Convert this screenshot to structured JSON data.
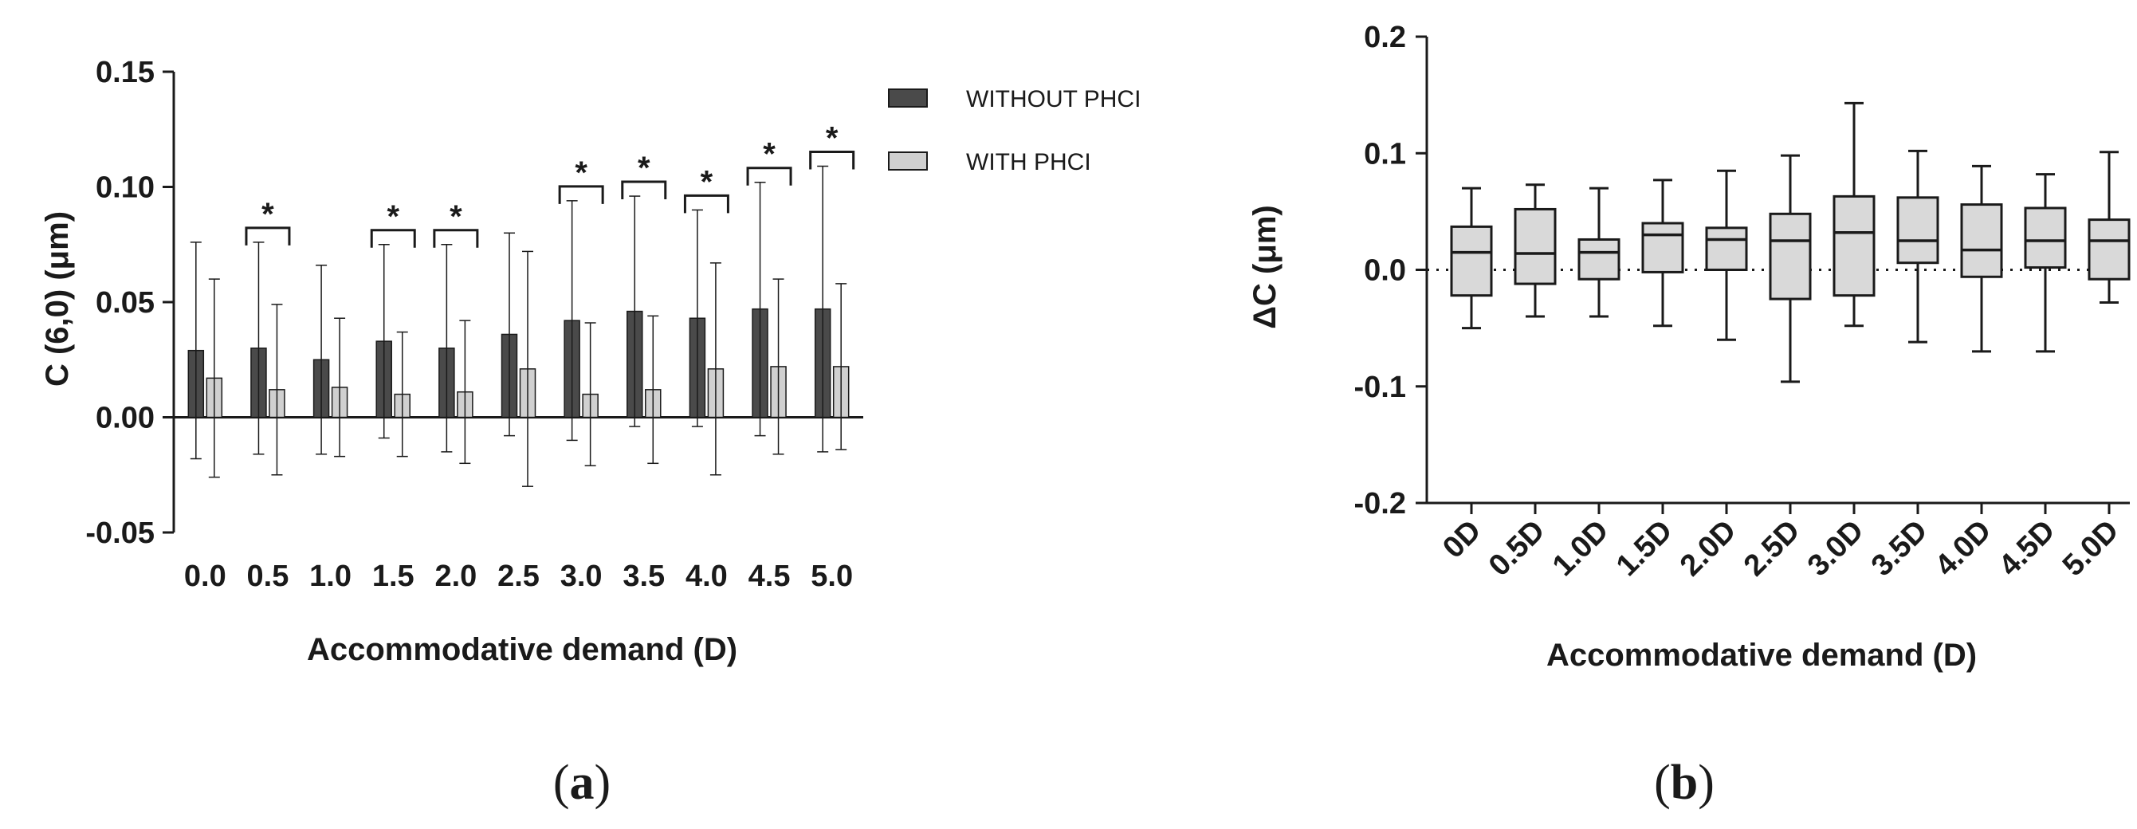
{
  "colors": {
    "dark_bar": "#4a4a4a",
    "light_bar": "#d0d0d0",
    "box_fill": "#d9d9d9",
    "axis": "#1a1a1a"
  },
  "chart_data": [
    {
      "type": "bar",
      "panel_label": "a",
      "categories": [
        "0.0",
        "0.5",
        "1.0",
        "1.5",
        "2.0",
        "2.5",
        "3.0",
        "3.5",
        "4.0",
        "4.5",
        "5.0"
      ],
      "series": [
        {
          "name": "WITHOUT PHCI",
          "color": "#4a4a4a",
          "values": [
            0.029,
            0.03,
            0.025,
            0.033,
            0.03,
            0.036,
            0.042,
            0.046,
            0.043,
            0.047,
            0.047
          ],
          "error": [
            0.047,
            0.046,
            0.041,
            0.042,
            0.045,
            0.044,
            0.052,
            0.05,
            0.047,
            0.055,
            0.062
          ]
        },
        {
          "name": "WITH PHCI",
          "color": "#d0d0d0",
          "values": [
            0.017,
            0.012,
            0.013,
            0.01,
            0.011,
            0.021,
            0.01,
            0.012,
            0.021,
            0.022,
            0.022
          ],
          "error": [
            0.043,
            0.037,
            0.03,
            0.027,
            0.031,
            0.051,
            0.031,
            0.032,
            0.046,
            0.038,
            0.036
          ]
        }
      ],
      "significance": [
        false,
        true,
        false,
        true,
        true,
        false,
        true,
        true,
        true,
        true,
        true
      ],
      "significance_label": "*",
      "xlabel": "Accommodative demand (D)",
      "ylabel": "C (6,0) (μm)",
      "ylim": [
        -0.05,
        0.15
      ],
      "yticks": [
        "-0.05",
        "0.00",
        "0.05",
        "0.10",
        "0.15"
      ],
      "legend_position": "right"
    },
    {
      "type": "box",
      "panel_label": "b",
      "categories": [
        "0D",
        "0.5D",
        "1.0D",
        "1.5D",
        "2.0D",
        "2.5D",
        "3.0D",
        "3.5D",
        "4.0D",
        "4.5D",
        "5.0D"
      ],
      "boxes": [
        {
          "min": -0.05,
          "q1": -0.022,
          "median": 0.015,
          "q3": 0.037,
          "max": 0.07
        },
        {
          "min": -0.04,
          "q1": -0.012,
          "median": 0.014,
          "q3": 0.052,
          "max": 0.073
        },
        {
          "min": -0.04,
          "q1": -0.008,
          "median": 0.015,
          "q3": 0.026,
          "max": 0.07
        },
        {
          "min": -0.048,
          "q1": -0.002,
          "median": 0.03,
          "q3": 0.04,
          "max": 0.077
        },
        {
          "min": -0.06,
          "q1": 0.0,
          "median": 0.026,
          "q3": 0.036,
          "max": 0.085
        },
        {
          "min": -0.096,
          "q1": -0.025,
          "median": 0.025,
          "q3": 0.048,
          "max": 0.098
        },
        {
          "min": -0.048,
          "q1": -0.022,
          "median": 0.032,
          "q3": 0.063,
          "max": 0.143
        },
        {
          "min": -0.062,
          "q1": 0.006,
          "median": 0.025,
          "q3": 0.062,
          "max": 0.102
        },
        {
          "min": -0.07,
          "q1": -0.006,
          "median": 0.017,
          "q3": 0.056,
          "max": 0.089
        },
        {
          "min": -0.07,
          "q1": 0.002,
          "median": 0.025,
          "q3": 0.053,
          "max": 0.082
        },
        {
          "min": -0.028,
          "q1": -0.008,
          "median": 0.025,
          "q3": 0.043,
          "max": 0.101
        }
      ],
      "xlabel": "Accommodative demand (D)",
      "ylabel": "ΔC (μm)",
      "ylim": [
        -0.2,
        0.2
      ],
      "yticks": [
        "-0.2",
        "-0.1",
        "0.0",
        "0.1",
        "0.2"
      ],
      "reference_line": 0.0
    }
  ]
}
